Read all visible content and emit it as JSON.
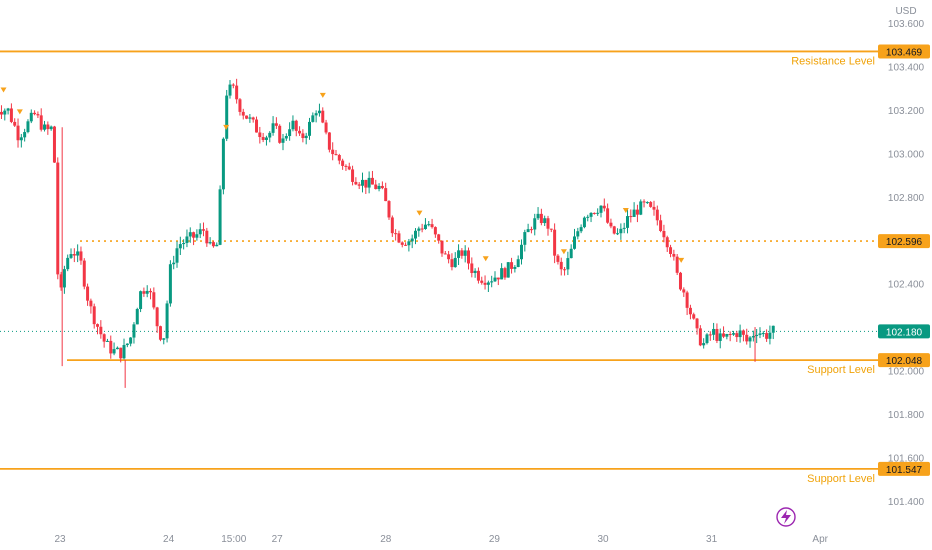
{
  "chart_data": {
    "type": "candlestick",
    "currency": "USD",
    "y_ticks": [
      "103.600",
      "103.400",
      "103.200",
      "103.000",
      "102.800",
      "102.400",
      "102.000",
      "101.800",
      "101.600",
      "101.400"
    ],
    "x_ticks": [
      {
        "label": "23",
        "t": 0
      },
      {
        "label": "24",
        "t": 1
      },
      {
        "label": "15:00",
        "t": 1.6
      },
      {
        "label": "27",
        "t": 2
      },
      {
        "label": "28",
        "t": 3
      },
      {
        "label": "29",
        "t": 4
      },
      {
        "label": "30",
        "t": 5
      },
      {
        "label": "31",
        "t": 6
      },
      {
        "label": "Apr",
        "t": 7
      }
    ],
    "levels": [
      {
        "name": "resistance",
        "label": "Resistance Level",
        "value": 103.469,
        "badge": "103.469",
        "style": "solid"
      },
      {
        "name": "pivot",
        "label": "",
        "value": 102.596,
        "badge": "102.596",
        "style": "dotted"
      },
      {
        "name": "support-1",
        "label": "Support Level",
        "value": 102.048,
        "badge": "102.048",
        "style": "solid"
      },
      {
        "name": "support-2",
        "label": "Support Level",
        "value": 101.547,
        "badge": "101.547",
        "style": "solid"
      }
    ],
    "current_price": {
      "value": 102.18,
      "badge": "102.180"
    },
    "colors": {
      "up": "#089981",
      "down": "#f23645",
      "level": "#f7a21b",
      "current": "#089981",
      "marker": "#f7a21b"
    },
    "path": [
      [
        -0.6,
        103.21
      ],
      [
        -0.45,
        103.2
      ],
      [
        -0.35,
        103.08
      ],
      [
        -0.2,
        103.18
      ],
      [
        -0.1,
        103.1
      ],
      [
        -0.03,
        103.12
      ],
      [
        0.02,
        102.28
      ],
      [
        0.08,
        102.5
      ],
      [
        0.14,
        102.56
      ],
      [
        0.22,
        102.5
      ],
      [
        0.3,
        102.3
      ],
      [
        0.38,
        102.2
      ],
      [
        0.45,
        102.12
      ],
      [
        0.52,
        102.09
      ],
      [
        0.6,
        102.08
      ],
      [
        0.68,
        102.15
      ],
      [
        0.76,
        102.35
      ],
      [
        0.84,
        102.4
      ],
      [
        0.92,
        102.22
      ],
      [
        0.98,
        102.13
      ],
      [
        1.05,
        102.48
      ],
      [
        1.12,
        102.58
      ],
      [
        1.2,
        102.6
      ],
      [
        1.28,
        102.62
      ],
      [
        1.36,
        102.65
      ],
      [
        1.42,
        102.55
      ],
      [
        1.48,
        102.58
      ],
      [
        1.52,
        102.95
      ],
      [
        1.56,
        103.28
      ],
      [
        1.62,
        103.3
      ],
      [
        1.7,
        103.2
      ],
      [
        1.78,
        103.15
      ],
      [
        1.86,
        103.1
      ],
      [
        1.94,
        103.08
      ],
      [
        2.0,
        103.12
      ],
      [
        2.08,
        103.05
      ],
      [
        2.16,
        103.15
      ],
      [
        2.24,
        103.06
      ],
      [
        2.32,
        103.12
      ],
      [
        2.4,
        103.22
      ],
      [
        2.46,
        103.1
      ],
      [
        2.52,
        103.02
      ],
      [
        2.58,
        102.98
      ],
      [
        2.64,
        102.95
      ],
      [
        2.72,
        102.9
      ],
      [
        2.8,
        102.87
      ],
      [
        2.86,
        102.86
      ],
      [
        2.92,
        102.85
      ],
      [
        2.98,
        102.84
      ],
      [
        3.05,
        102.74
      ],
      [
        3.1,
        102.64
      ],
      [
        3.18,
        102.6
      ],
      [
        3.26,
        102.6
      ],
      [
        3.34,
        102.66
      ],
      [
        3.42,
        102.68
      ],
      [
        3.5,
        102.6
      ],
      [
        3.58,
        102.52
      ],
      [
        3.66,
        102.5
      ],
      [
        3.74,
        102.55
      ],
      [
        3.82,
        102.47
      ],
      [
        3.9,
        102.43
      ],
      [
        3.98,
        102.42
      ],
      [
        4.06,
        102.44
      ],
      [
        4.14,
        102.46
      ],
      [
        4.22,
        102.5
      ],
      [
        4.3,
        102.6
      ],
      [
        4.38,
        102.68
      ],
      [
        4.46,
        102.7
      ],
      [
        4.54,
        102.66
      ],
      [
        4.6,
        102.5
      ],
      [
        4.66,
        102.44
      ],
      [
        4.72,
        102.52
      ],
      [
        4.78,
        102.62
      ],
      [
        4.86,
        102.72
      ],
      [
        4.94,
        102.74
      ],
      [
        5.02,
        102.76
      ],
      [
        5.1,
        102.64
      ],
      [
        5.18,
        102.62
      ],
      [
        5.26,
        102.7
      ],
      [
        5.34,
        102.74
      ],
      [
        5.42,
        102.76
      ],
      [
        5.5,
        102.72
      ],
      [
        5.58,
        102.65
      ],
      [
        5.66,
        102.55
      ],
      [
        5.72,
        102.42
      ],
      [
        5.78,
        102.36
      ],
      [
        5.84,
        102.26
      ],
      [
        5.9,
        102.16
      ],
      [
        5.96,
        102.12
      ],
      [
        6.04,
        102.18
      ],
      [
        6.12,
        102.14
      ],
      [
        6.2,
        102.16
      ],
      [
        6.28,
        102.18
      ],
      [
        6.36,
        102.13
      ],
      [
        6.44,
        102.19
      ],
      [
        6.52,
        102.16
      ],
      [
        6.58,
        102.18
      ]
    ],
    "signals": [
      {
        "t": -0.52,
        "dir": "down"
      },
      {
        "t": -0.37,
        "dir": "down"
      },
      {
        "t": 1.53,
        "dir": "down"
      },
      {
        "t": 2.42,
        "dir": "down"
      },
      {
        "t": 3.31,
        "dir": "down"
      },
      {
        "t": 3.92,
        "dir": "down"
      },
      {
        "t": 4.64,
        "dir": "down"
      },
      {
        "t": 5.21,
        "dir": "down"
      },
      {
        "t": 5.72,
        "dir": "down"
      }
    ],
    "lightning_icon": "lightning-icon"
  }
}
